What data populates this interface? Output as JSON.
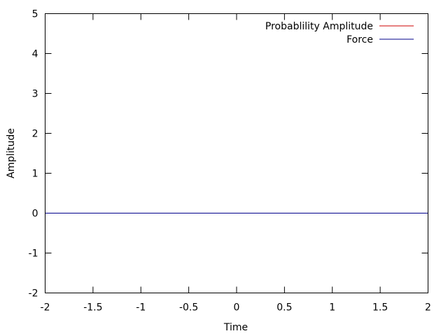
{
  "chart_data": {
    "type": "line",
    "title": "",
    "xlabel": "Time",
    "ylabel": "Amplitude",
    "xlim": [
      -2,
      2
    ],
    "ylim": [
      -2,
      5
    ],
    "xticks": [
      -2,
      -1.5,
      -1,
      -0.5,
      0,
      0.5,
      1,
      1.5,
      2
    ],
    "yticks": [
      -2,
      -1,
      0,
      1,
      2,
      3,
      4,
      5
    ],
    "grid": false,
    "legend": {
      "position": "top-right"
    },
    "series": [
      {
        "name": "Probablility Amplitude",
        "color": "#cc0000",
        "x": [
          -2,
          2
        ],
        "y": [
          0,
          0
        ]
      },
      {
        "name": "Force",
        "color": "#00008b",
        "x": [
          -2,
          2
        ],
        "y": [
          0,
          0
        ]
      }
    ]
  }
}
